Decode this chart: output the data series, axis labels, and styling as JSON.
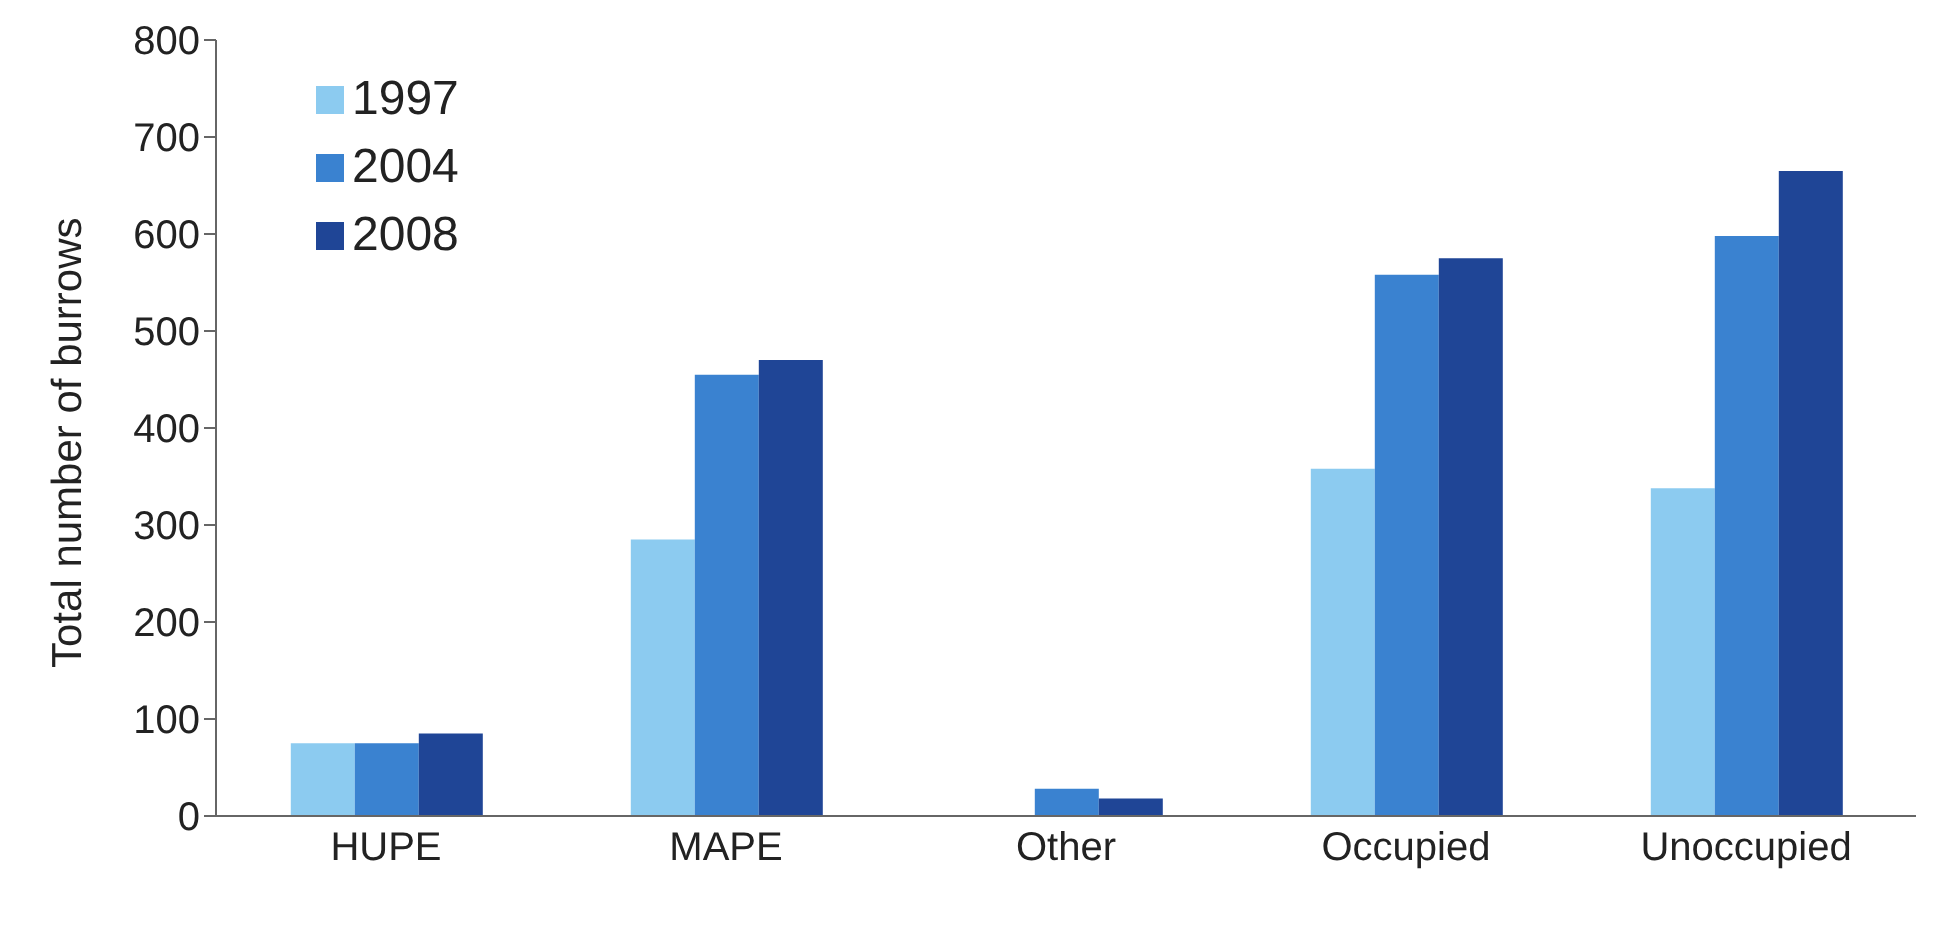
{
  "chart_data": {
    "type": "bar",
    "ylabel": "Total number of burrows",
    "categories": [
      "HUPE",
      "MAPE",
      "Other",
      "Occupied",
      "Unoccupied"
    ],
    "series": [
      {
        "name": "1997",
        "color": "#8ccbf0",
        "values": [
          75,
          285,
          0,
          358,
          338
        ]
      },
      {
        "name": "2004",
        "color": "#3a82d0",
        "values": [
          75,
          455,
          28,
          558,
          598
        ]
      },
      {
        "name": "2008",
        "color": "#1f4596",
        "values": [
          85,
          470,
          18,
          575,
          665
        ]
      }
    ],
    "ylim": [
      0,
      800
    ],
    "yticks": [
      0,
      100,
      200,
      300,
      400,
      500,
      600,
      700,
      800
    ],
    "grid": false,
    "legend": "top left"
  }
}
